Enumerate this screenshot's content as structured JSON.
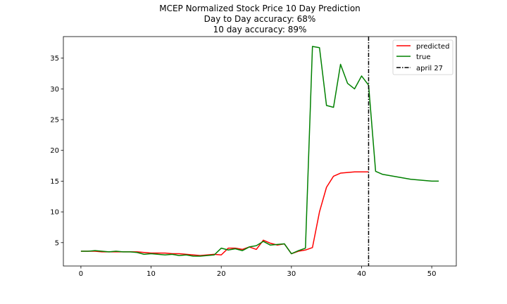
{
  "chart_data": {
    "type": "line",
    "title_lines": [
      "MCEP Normalized Stock Price 10 Day Prediction",
      "Day to Day accuracy: 68%",
      "10 day accuracy: 89%"
    ],
    "xlabel": "",
    "ylabel": "",
    "xlim": [
      -2.5,
      53.5
    ],
    "ylim": [
      1.2,
      38.5
    ],
    "xticks": [
      0,
      10,
      20,
      30,
      40,
      50
    ],
    "yticks": [
      5,
      10,
      15,
      20,
      25,
      30,
      35
    ],
    "grid": false,
    "legend_position": "upper right",
    "series": [
      {
        "name": "predicted",
        "color": "#ff0000",
        "x": [
          0,
          1,
          2,
          3,
          4,
          5,
          6,
          7,
          8,
          9,
          10,
          11,
          12,
          13,
          14,
          15,
          16,
          17,
          18,
          19,
          20,
          21,
          22,
          23,
          24,
          25,
          26,
          27,
          28,
          29,
          30,
          31,
          32,
          33,
          34,
          35,
          36,
          37,
          38,
          39,
          40,
          41
        ],
        "y": [
          3.6,
          3.6,
          3.6,
          3.5,
          3.5,
          3.5,
          3.5,
          3.5,
          3.5,
          3.4,
          3.3,
          3.3,
          3.3,
          3.2,
          3.2,
          3.1,
          3.0,
          2.9,
          3.0,
          3.1,
          3.0,
          4.1,
          4.1,
          3.9,
          4.3,
          3.9,
          5.4,
          4.9,
          4.6,
          4.8,
          3.2,
          3.6,
          3.8,
          4.2,
          10.0,
          14.0,
          15.8,
          16.3,
          16.4,
          16.5,
          16.5,
          16.5
        ]
      },
      {
        "name": "true",
        "color": "#008000",
        "x": [
          0,
          1,
          2,
          3,
          4,
          5,
          6,
          7,
          8,
          9,
          10,
          11,
          12,
          13,
          14,
          15,
          16,
          17,
          18,
          19,
          20,
          21,
          22,
          23,
          24,
          25,
          26,
          27,
          28,
          29,
          30,
          31,
          32,
          33,
          34,
          35,
          36,
          37,
          38,
          39,
          40,
          41,
          42,
          43,
          44,
          45,
          46,
          47,
          48,
          49,
          50,
          51
        ],
        "y": [
          3.6,
          3.6,
          3.7,
          3.6,
          3.5,
          3.6,
          3.5,
          3.5,
          3.4,
          3.1,
          3.2,
          3.1,
          3.0,
          3.1,
          2.9,
          3.0,
          2.8,
          2.8,
          2.9,
          3.0,
          4.1,
          3.8,
          4.0,
          3.7,
          4.3,
          4.5,
          5.2,
          4.6,
          4.7,
          4.8,
          3.2,
          3.7,
          4.1,
          36.9,
          36.7,
          27.3,
          27.0,
          34.0,
          30.9,
          30.0,
          32.1,
          30.6,
          16.6,
          16.1,
          15.9,
          15.7,
          15.5,
          15.3,
          15.2,
          15.1,
          15.0,
          15.0
        ]
      }
    ],
    "vline": {
      "x": 41,
      "label": "april 27",
      "color": "#000000",
      "style": "dash-dot"
    }
  }
}
